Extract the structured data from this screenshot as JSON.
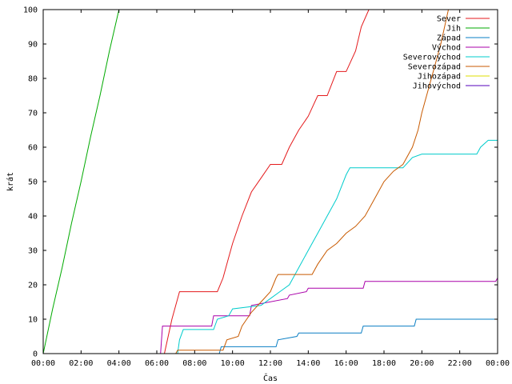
{
  "chart_data": {
    "type": "line",
    "title": "",
    "xlabel": "Čas",
    "ylabel": "krát",
    "x_range_hours": [
      0,
      24
    ],
    "ylim": [
      0,
      100
    ],
    "x_ticks": [
      {
        "value": 0,
        "label": "00:00"
      },
      {
        "value": 2,
        "label": "02:00"
      },
      {
        "value": 4,
        "label": "04:00"
      },
      {
        "value": 6,
        "label": "06:00"
      },
      {
        "value": 8,
        "label": "08:00"
      },
      {
        "value": 10,
        "label": "10:00"
      },
      {
        "value": 12,
        "label": "12:00"
      },
      {
        "value": 14,
        "label": "14:00"
      },
      {
        "value": 16,
        "label": "16:00"
      },
      {
        "value": 18,
        "label": "18:00"
      },
      {
        "value": 20,
        "label": "20:00"
      },
      {
        "value": 22,
        "label": "22:00"
      },
      {
        "value": 24,
        "label": "00:00"
      }
    ],
    "y_ticks": [
      0,
      10,
      20,
      30,
      40,
      50,
      60,
      70,
      80,
      90,
      100
    ],
    "grid": false,
    "legend_position": "top-right",
    "series": [
      {
        "name": "Sever",
        "color": "#e41a1c",
        "points": [
          [
            0,
            0
          ],
          [
            6.4,
            0
          ],
          [
            6.8,
            10
          ],
          [
            7.2,
            18
          ],
          [
            9.2,
            18
          ],
          [
            9.5,
            22
          ],
          [
            9.8,
            28
          ],
          [
            10.0,
            32
          ],
          [
            10.5,
            40
          ],
          [
            11.0,
            47
          ],
          [
            11.5,
            51
          ],
          [
            12.0,
            55
          ],
          [
            12.6,
            55
          ],
          [
            13.0,
            60
          ],
          [
            13.5,
            65
          ],
          [
            14.0,
            69
          ],
          [
            14.5,
            75
          ],
          [
            15.0,
            75
          ],
          [
            15.5,
            82
          ],
          [
            16.0,
            82
          ],
          [
            16.5,
            88
          ],
          [
            16.8,
            95
          ],
          [
            17.2,
            100
          ]
        ]
      },
      {
        "name": "Jih",
        "color": "#00aa00",
        "points": [
          [
            0,
            0
          ],
          [
            0.5,
            13
          ],
          [
            1.0,
            25
          ],
          [
            1.5,
            38
          ],
          [
            2.0,
            50
          ],
          [
            2.5,
            63
          ],
          [
            3.0,
            75
          ],
          [
            3.5,
            88
          ],
          [
            4.0,
            100
          ]
        ]
      },
      {
        "name": "Západ",
        "color": "#0a7fc4",
        "points": [
          [
            0,
            0
          ],
          [
            9.3,
            0
          ],
          [
            9.4,
            2
          ],
          [
            12.3,
            2
          ],
          [
            12.4,
            4
          ],
          [
            13.4,
            5
          ],
          [
            13.5,
            6
          ],
          [
            16.8,
            6
          ],
          [
            16.9,
            8
          ],
          [
            19.6,
            8
          ],
          [
            19.7,
            10
          ],
          [
            24,
            10
          ]
        ]
      },
      {
        "name": "Východ",
        "color": "#aa00aa",
        "points": [
          [
            0,
            0
          ],
          [
            6.2,
            0
          ],
          [
            6.3,
            8
          ],
          [
            8.9,
            8
          ],
          [
            9.0,
            11
          ],
          [
            10.9,
            11
          ],
          [
            11.0,
            14
          ],
          [
            12.9,
            16
          ],
          [
            13.0,
            17
          ],
          [
            13.9,
            18
          ],
          [
            14.0,
            19
          ],
          [
            16.9,
            19
          ],
          [
            17.0,
            21
          ],
          [
            23.9,
            21
          ],
          [
            24,
            22
          ]
        ]
      },
      {
        "name": "Severovýchod",
        "color": "#00cccc",
        "points": [
          [
            0,
            0
          ],
          [
            7.1,
            0
          ],
          [
            7.2,
            4
          ],
          [
            7.4,
            7
          ],
          [
            9.0,
            7
          ],
          [
            9.2,
            10
          ],
          [
            9.8,
            11
          ],
          [
            10.0,
            13
          ],
          [
            11.5,
            14
          ],
          [
            12.0,
            16
          ],
          [
            12.5,
            18
          ],
          [
            13.0,
            20
          ],
          [
            13.5,
            25
          ],
          [
            14.0,
            30
          ],
          [
            14.5,
            35
          ],
          [
            15.0,
            40
          ],
          [
            15.5,
            45
          ],
          [
            16.0,
            52
          ],
          [
            16.2,
            54
          ],
          [
            19.0,
            54
          ],
          [
            19.5,
            57
          ],
          [
            20.0,
            58
          ],
          [
            22.9,
            58
          ],
          [
            23.1,
            60
          ],
          [
            23.5,
            62
          ],
          [
            24,
            62
          ]
        ]
      },
      {
        "name": "Severozápad",
        "color": "#c85a00",
        "points": [
          [
            0,
            0
          ],
          [
            7.0,
            0
          ],
          [
            7.1,
            1
          ],
          [
            9.5,
            1
          ],
          [
            9.7,
            4
          ],
          [
            10.3,
            5
          ],
          [
            10.5,
            8
          ],
          [
            11.0,
            12
          ],
          [
            11.5,
            15
          ],
          [
            12.0,
            18
          ],
          [
            12.3,
            22
          ],
          [
            12.4,
            23
          ],
          [
            14.2,
            23
          ],
          [
            14.5,
            26
          ],
          [
            15.0,
            30
          ],
          [
            15.5,
            32
          ],
          [
            16.0,
            35
          ],
          [
            16.5,
            37
          ],
          [
            17.0,
            40
          ],
          [
            17.5,
            45
          ],
          [
            18.0,
            50
          ],
          [
            18.5,
            53
          ],
          [
            19.0,
            55
          ],
          [
            19.5,
            60
          ],
          [
            19.8,
            65
          ],
          [
            20.0,
            70
          ],
          [
            20.5,
            80
          ],
          [
            21.0,
            90
          ],
          [
            21.4,
            100
          ]
        ]
      },
      {
        "name": "Jihozápad",
        "color": "#dddd00",
        "points": []
      },
      {
        "name": "Jihovýchod",
        "color": "#5500bb",
        "points": []
      }
    ]
  }
}
